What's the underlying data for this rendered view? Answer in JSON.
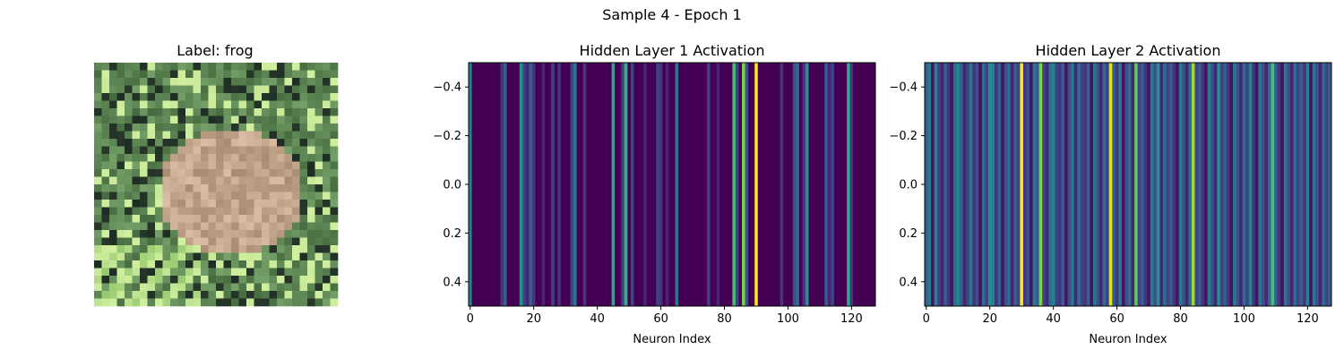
{
  "figure": {
    "suptitle": "Sample 4 - Epoch 1"
  },
  "image_panel": {
    "title": "Label: frog",
    "grid_size": 32
  },
  "chart_data": [
    {
      "type": "heatmap",
      "title": "Hidden Layer 1 Activation",
      "xlabel": "Neuron Index",
      "ylabel": "",
      "colormap": "viridis",
      "xlim": [
        -0.5,
        127.5
      ],
      "ylim": [
        -0.5,
        0.5
      ],
      "y_inverted": true,
      "xticks": [
        0,
        20,
        40,
        60,
        80,
        100,
        120
      ],
      "yticks": [
        -0.4,
        -0.2,
        0.0,
        0.2,
        0.4
      ],
      "ytick_labels": [
        "−0.4",
        "−0.2",
        "0.0",
        "0.2",
        "0.4"
      ],
      "values": [
        0.45,
        0,
        0,
        0,
        0,
        0,
        0,
        0,
        0,
        0,
        0.15,
        0.3,
        0,
        0,
        0,
        0,
        0.5,
        0.2,
        0.1,
        0.3,
        0.15,
        0,
        0,
        0.1,
        0,
        0,
        0.2,
        0,
        0.15,
        0,
        0,
        0,
        0.2,
        0.4,
        0,
        0,
        0.15,
        0,
        0,
        0,
        0,
        0,
        0,
        0,
        0,
        0.6,
        0,
        0,
        0.2,
        0.65,
        0,
        0.2,
        0,
        0,
        0,
        0.1,
        0,
        0,
        0,
        0.2,
        0.15,
        0,
        0.1,
        0,
        0,
        0.4,
        0,
        0,
        0,
        0,
        0,
        0,
        0,
        0,
        0,
        0.2,
        0,
        0,
        0.1,
        0,
        0,
        0,
        0,
        0.7,
        0.2,
        0,
        0.8,
        0.25,
        0,
        0,
        1.0,
        0,
        0,
        0,
        0,
        0,
        0,
        0,
        0.15,
        0,
        0,
        0,
        0.25,
        0.35,
        0,
        0.15,
        0.5,
        0,
        0,
        0,
        0,
        0,
        0.3,
        0.1,
        0.2,
        0,
        0,
        0,
        0,
        0.6,
        0.15,
        0,
        0,
        0,
        0,
        0,
        0,
        0
      ],
      "vmin": 0,
      "vmax": 1
    },
    {
      "type": "heatmap",
      "title": "Hidden Layer 2 Activation",
      "xlabel": "Neuron Index",
      "ylabel": "",
      "colormap": "viridis",
      "xlim": [
        -0.5,
        127.5
      ],
      "ylim": [
        -0.5,
        0.5
      ],
      "y_inverted": true,
      "xticks": [
        0,
        20,
        40,
        60,
        80,
        100,
        120
      ],
      "yticks": [
        -0.4,
        -0.2,
        0.0,
        0.2,
        0.4
      ],
      "ytick_labels": [
        "−0.4",
        "−0.2",
        "0.0",
        "0.2",
        "0.4"
      ],
      "values": [
        0.3,
        0.4,
        0.05,
        0.45,
        0.2,
        0.1,
        0.3,
        0.15,
        0.05,
        0.35,
        0.45,
        0.3,
        0.1,
        0.2,
        0.4,
        0.15,
        0.25,
        0.05,
        0.35,
        0.2,
        0.5,
        0.45,
        0.15,
        0.3,
        0.05,
        0.25,
        0.35,
        0.1,
        0.3,
        0.2,
        1.0,
        0.15,
        0.25,
        0.05,
        0.4,
        0.3,
        0.8,
        0.2,
        0.1,
        0.35,
        0.45,
        0.2,
        0.15,
        0.3,
        0.05,
        0.25,
        0.4,
        0.1,
        0.35,
        0.2,
        0.15,
        0.3,
        0.05,
        0.4,
        0.25,
        0.1,
        0.35,
        0.2,
        0.95,
        0.3,
        0.15,
        0.4,
        0.05,
        0.25,
        0.35,
        0.1,
        0.75,
        0.2,
        0.3,
        0.15,
        0.05,
        0.4,
        0.25,
        0.5,
        0.1,
        0.35,
        0.2,
        0.3,
        0.15,
        0.05,
        0.4,
        0.25,
        0.1,
        0.35,
        0.85,
        0.2,
        0.3,
        0.15,
        0.05,
        0.4,
        0.25,
        0.1,
        0.5,
        0.2,
        0.3,
        0.15,
        0.05,
        0.4,
        0.25,
        0.1,
        0.35,
        0.2,
        0.45,
        0.15,
        0.05,
        0.4,
        0.25,
        0.1,
        0.35,
        0.7,
        0.3,
        0.15,
        0.05,
        0.4,
        0.25,
        0.1,
        0.35,
        0.2,
        0.3,
        0.15,
        0.45,
        0.05,
        0.4,
        0.25,
        0.1,
        0.35,
        0.2,
        0.3
      ]
    }
  ],
  "colors": {
    "viridis": [
      "#440154",
      "#482878",
      "#3e4989",
      "#31688e",
      "#26828e",
      "#1f9e89",
      "#35b779",
      "#6ece58",
      "#b5de2b",
      "#fde725"
    ]
  }
}
